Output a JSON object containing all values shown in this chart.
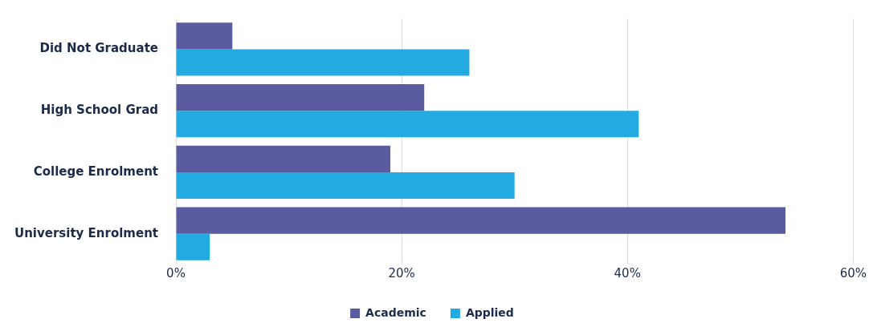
{
  "chart_data": {
    "type": "bar",
    "orientation": "horizontal",
    "categories": [
      "Did Not Graduate",
      "High School Grad",
      "College Enrolment",
      "University Enrolment"
    ],
    "series": [
      {
        "name": "Academic",
        "color": "#5b5b9f",
        "values": [
          5,
          22,
          19,
          54
        ]
      },
      {
        "name": "Applied",
        "color": "#23aae1",
        "values": [
          26,
          41,
          30,
          3
        ]
      }
    ],
    "xlim": [
      0,
      60
    ],
    "xticks": [
      {
        "value": 0,
        "label": "0%"
      },
      {
        "value": 20,
        "label": "20%"
      },
      {
        "value": 40,
        "label": "40%"
      },
      {
        "value": 60,
        "label": "60%"
      }
    ],
    "grid": "x",
    "legend": "bottom"
  }
}
